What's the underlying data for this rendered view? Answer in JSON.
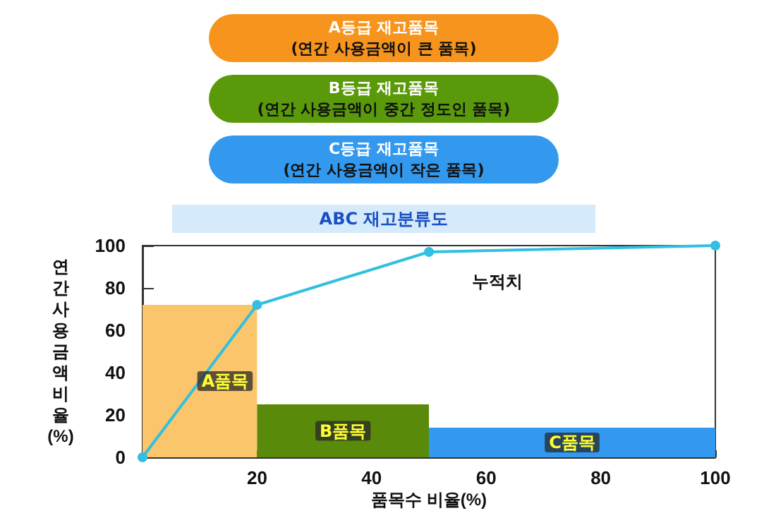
{
  "chart_data": {
    "type": "histogram",
    "title": "ABC 재고분류도",
    "xlabel": "품목수 비율(%)",
    "ylabel": "연간사용금액비율(%)",
    "annotations": [
      "A등급 재고품목\n(연간 사용금액이 큰 품목)",
      "B등급 재고품목\n(연간 사용금액이 중간 정도인 품목)",
      "C등급 재고품목\n(연간 사용금액이 작은 품목)",
      "누적치",
      "A품목",
      "B품목",
      "C품목"
    ],
    "bins": [
      0,
      20,
      50,
      100
    ],
    "values": [
      72,
      25,
      14
    ],
    "colors": [
      "#fbc66b",
      "#5a8a0a",
      "#3399ee"
    ],
    "series": [
      {
        "type": "line",
        "x": [
          0,
          20,
          50,
          100
        ],
        "values": [
          0,
          72,
          97,
          100
        ],
        "color": "#33c0e0"
      }
    ],
    "marker": "circle",
    "line_style": "solid",
    "grid": false,
    "xlim": [
      0,
      100
    ],
    "xticks": [
      20,
      40,
      60,
      80,
      100
    ],
    "ylim": [
      0,
      100
    ],
    "yticks": [
      0,
      20,
      40,
      60,
      80,
      100
    ]
  }
}
